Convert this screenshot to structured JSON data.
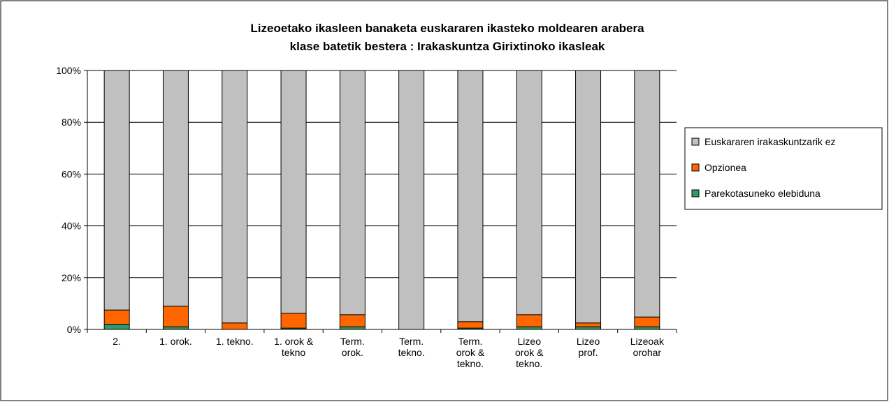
{
  "chart_data": {
    "type": "stacked_bar",
    "title": [
      "Lizeoetako ikasleen banaketa euskararen ikasteko moldearen arabera",
      "klase batetik bestera : Irakaskuntza Girixtinoko ikasleak"
    ],
    "categories": [
      "2.",
      "1. orok.",
      "1. tekno.",
      "1. orok &\ntekno",
      "Term.\norok.",
      "Term.\ntekno.",
      "Term.\norok &\ntekno.",
      "Lizeo\norok &\ntekno.",
      "Lizeo\nprof.",
      "Lizeoak\norohar"
    ],
    "series": [
      {
        "name": "Parekotasuneko elebiduna",
        "color": "#339966",
        "values": [
          2,
          1,
          0,
          0.5,
          1,
          0,
          0.5,
          1,
          1,
          1
        ]
      },
      {
        "name": "Opzionea",
        "color": "#ff6600",
        "values": [
          5.5,
          8,
          2.5,
          5.7,
          4.7,
          0,
          2.5,
          4.7,
          1.5,
          3.8
        ]
      },
      {
        "name": "Euskararen irakaskuntzarik ez",
        "color": "#c0c0c0",
        "values": [
          92.5,
          91,
          97.5,
          93.8,
          94.3,
          100,
          97,
          94.3,
          97.5,
          95.2
        ]
      }
    ],
    "ylim": [
      0,
      100
    ],
    "yticks": [
      {
        "value": 0,
        "label": "0%"
      },
      {
        "value": 20,
        "label": "20%"
      },
      {
        "value": 40,
        "label": "40%"
      },
      {
        "value": 60,
        "label": "60%"
      },
      {
        "value": 80,
        "label": "80%"
      },
      {
        "value": 100,
        "label": "100%"
      }
    ],
    "grid": true,
    "legend": "right"
  }
}
